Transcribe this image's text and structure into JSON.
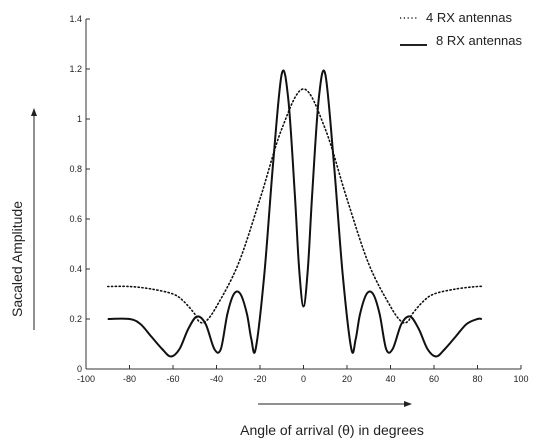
{
  "chart_data": {
    "type": "line",
    "title": "",
    "xlabel": "Angle of arrival (θ)  in degrees",
    "ylabel": "Sacaled Amplitude",
    "xlim": [
      -100,
      100
    ],
    "ylim": [
      0,
      1.4
    ],
    "x_ticks": [
      "-100",
      "-80",
      "-60",
      "-40",
      "-20",
      "0",
      "20",
      "40",
      "60",
      "80",
      "100"
    ],
    "y_ticks": [
      "0",
      "0.2",
      "0.4",
      "0.6",
      "0.8",
      "1",
      "1.2",
      "1.4"
    ],
    "grid": false,
    "legend_position": "top-right",
    "legend": [
      {
        "marker": ".....",
        "label": "4 RX antennas"
      },
      {
        "marker": "___",
        "label": "8 RX antennas"
      }
    ],
    "series": [
      {
        "name": "4 RX antennas",
        "style": "dotted",
        "x": [
          -90,
          -80,
          -70,
          -60,
          -55,
          -50,
          -48,
          -45,
          -40,
          -30,
          -20,
          -10,
          0,
          10,
          20,
          30,
          40,
          45,
          48,
          50,
          55,
          60,
          70,
          80,
          82
        ],
        "y": [
          0.33,
          0.33,
          0.32,
          0.3,
          0.27,
          0.22,
          0.19,
          0.19,
          0.25,
          0.42,
          0.68,
          0.96,
          1.12,
          0.96,
          0.68,
          0.42,
          0.25,
          0.19,
          0.19,
          0.22,
          0.27,
          0.3,
          0.32,
          0.33,
          0.33
        ]
      },
      {
        "name": "8 RX antennas",
        "style": "solid",
        "x": [
          -90,
          -80,
          -75,
          -70,
          -65,
          -61,
          -57,
          -53,
          -49,
          -45,
          -41,
          -38,
          -35,
          -32,
          -29,
          -26,
          -24,
          -22,
          -18,
          -14,
          -10,
          -7,
          -4,
          -2,
          0,
          2,
          4,
          7,
          10,
          14,
          18,
          22,
          24,
          26,
          29,
          32,
          35,
          38,
          41,
          45,
          49,
          53,
          57,
          61,
          65,
          70,
          75,
          80,
          82
        ],
        "y": [
          0.2,
          0.2,
          0.18,
          0.13,
          0.08,
          0.05,
          0.08,
          0.16,
          0.21,
          0.18,
          0.08,
          0.08,
          0.22,
          0.3,
          0.3,
          0.22,
          0.12,
          0.08,
          0.38,
          0.82,
          1.18,
          1.08,
          0.7,
          0.4,
          0.25,
          0.4,
          0.7,
          1.08,
          1.18,
          0.82,
          0.38,
          0.08,
          0.12,
          0.22,
          0.3,
          0.3,
          0.22,
          0.08,
          0.08,
          0.18,
          0.21,
          0.16,
          0.08,
          0.05,
          0.08,
          0.13,
          0.18,
          0.2,
          0.2
        ]
      }
    ]
  }
}
